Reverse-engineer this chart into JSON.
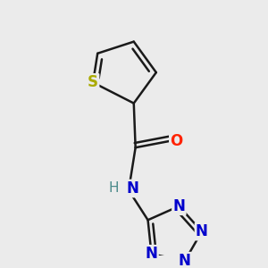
{
  "background_color": "#ebebeb",
  "bond_color": "#1a1a1a",
  "bond_width": 1.8,
  "atoms": {
    "S": {
      "color": "#aaaa00",
      "fontsize": 12,
      "fontweight": "bold"
    },
    "O": {
      "color": "#ff2200",
      "fontsize": 12,
      "fontweight": "bold"
    },
    "N": {
      "color": "#0000cc",
      "fontsize": 12,
      "fontweight": "bold"
    },
    "HN": {
      "color": "#4a8a8a",
      "fontsize": 11,
      "fontweight": "normal"
    },
    "C": {
      "color": "#1a1a1a",
      "fontsize": 10,
      "fontweight": "normal"
    }
  },
  "figsize": [
    3.0,
    3.0
  ],
  "dpi": 100
}
